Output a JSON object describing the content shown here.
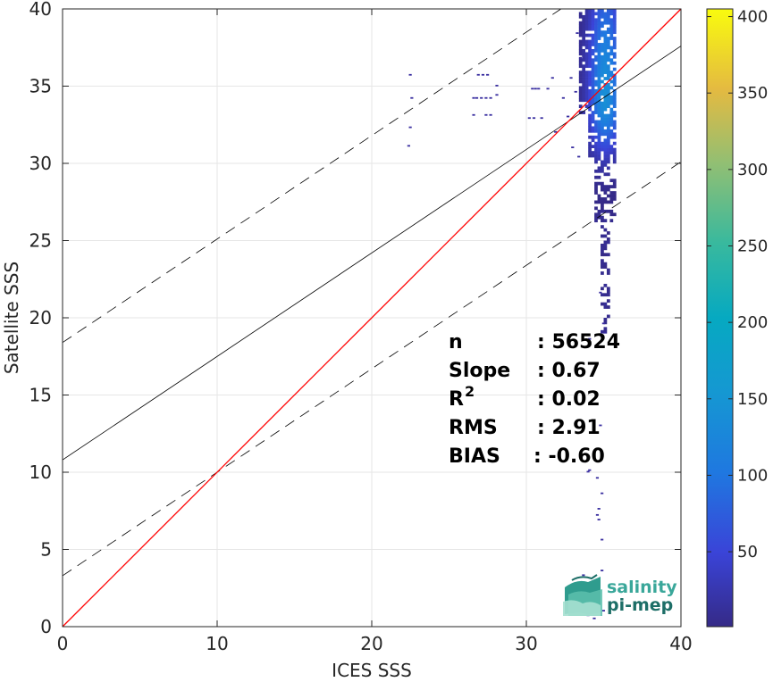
{
  "chart_data": {
    "type": "heatmap",
    "xlabel": "ICES SSS",
    "ylabel": "Satellite SSS",
    "xlim": [
      0,
      40
    ],
    "ylim": [
      0,
      40
    ],
    "x_ticks": [
      "0",
      "10",
      "20",
      "30",
      "40"
    ],
    "y_ticks": [
      "0",
      "5",
      "10",
      "15",
      "20",
      "25",
      "30",
      "35",
      "40"
    ],
    "grid": true,
    "colorbar": {
      "range": [
        1,
        405
      ],
      "ticks": [
        "50",
        "100",
        "150",
        "200",
        "250",
        "300",
        "350",
        "400"
      ],
      "colormap": "parula"
    },
    "lines": {
      "identity": {
        "slope": 1,
        "intercept": 0,
        "color": "#ff0000"
      },
      "regression": {
        "slope": 0.67,
        "intercept": 10.8,
        "color": "#000000"
      },
      "upper_bound": {
        "slope": 0.67,
        "intercept": 18.4,
        "dashed": true
      },
      "lower_bound": {
        "slope": 0.67,
        "intercept": 3.3,
        "dashed": true
      }
    },
    "stats": [
      {
        "label": "n",
        "value": ": 56524"
      },
      {
        "label": "Slope",
        "value": ": 0.67"
      },
      {
        "label": "R",
        "sup": "2",
        "value": ": 0.02"
      },
      {
        "label": "RMS",
        "value": ": 2.91"
      },
      {
        "label": "BIAS",
        "value": ": -0.60"
      }
    ],
    "density_core": {
      "x": 35.0,
      "y": 34.0,
      "x_spread": 0.7,
      "y_range": [
        19,
        40
      ],
      "peak_count": 140
    },
    "outlier_points": [
      [
        22.4,
        35.7
      ],
      [
        22.5,
        34.2
      ],
      [
        22.3,
        31.1
      ],
      [
        22.4,
        32.3
      ],
      [
        26.5,
        34.2
      ],
      [
        26.7,
        34.2
      ],
      [
        27.0,
        34.2
      ],
      [
        27.3,
        34.2
      ],
      [
        27.6,
        34.2
      ],
      [
        26.8,
        35.7
      ],
      [
        27.1,
        35.7
      ],
      [
        27.4,
        35.7
      ],
      [
        26.5,
        33.1
      ],
      [
        27.3,
        33.1
      ],
      [
        27.6,
        33.1
      ],
      [
        28.0,
        35.0
      ],
      [
        28.0,
        34.4
      ],
      [
        30.3,
        34.8
      ],
      [
        30.5,
        34.8
      ],
      [
        30.7,
        34.8
      ],
      [
        30.1,
        32.9
      ],
      [
        30.4,
        32.9
      ],
      [
        30.9,
        32.9
      ],
      [
        31.3,
        34.8
      ],
      [
        31.6,
        35.5
      ],
      [
        31.8,
        32.0
      ],
      [
        32.3,
        34.2
      ],
      [
        32.6,
        33.0
      ],
      [
        32.8,
        35.5
      ],
      [
        32.9,
        31.0
      ],
      [
        33.1,
        34.6
      ],
      [
        33.3,
        30.4
      ],
      [
        33.4,
        36.8
      ],
      [
        33.2,
        38.4
      ],
      [
        34.0,
        18.6
      ],
      [
        34.4,
        17.0
      ],
      [
        34.2,
        15.2
      ],
      [
        34.7,
        13.0
      ],
      [
        34.3,
        11.3
      ],
      [
        34.0,
        10.1
      ],
      [
        34.5,
        9.6
      ],
      [
        33.9,
        10.0
      ],
      [
        34.8,
        8.6
      ],
      [
        34.6,
        7.6
      ],
      [
        34.5,
        7.2
      ],
      [
        34.6,
        6.9
      ],
      [
        34.8,
        5.6
      ],
      [
        33.6,
        3.3
      ],
      [
        34.8,
        3.6
      ],
      [
        34.9,
        1.0
      ],
      [
        33.9,
        0.7
      ],
      [
        34.3,
        0.5
      ],
      [
        35.0,
        19.0
      ],
      [
        34.9,
        19.6
      ],
      [
        34.7,
        21.6
      ]
    ]
  },
  "logo": {
    "line1": "salinity",
    "line2": "pi-mep",
    "color1": "#3aa79a",
    "color2": "#1d6e67"
  }
}
